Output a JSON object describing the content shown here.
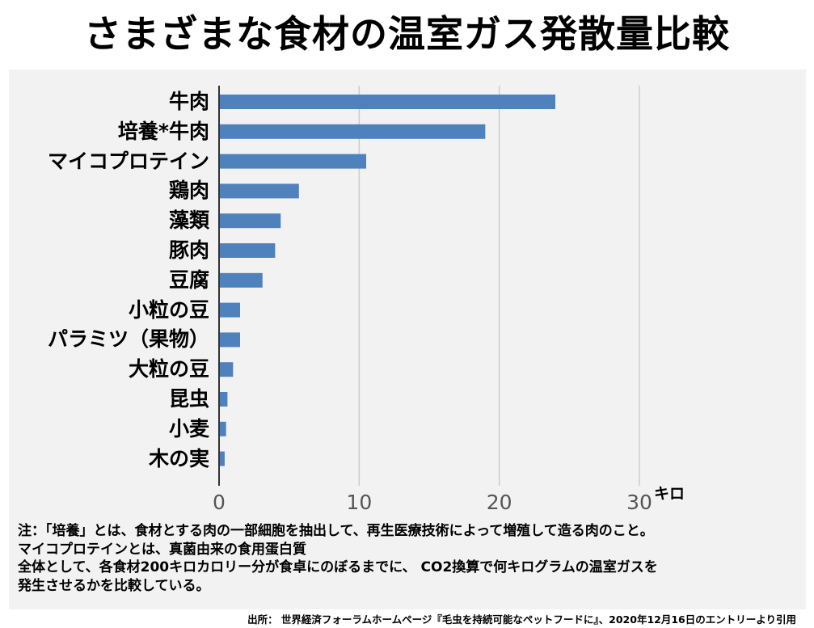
{
  "title": "さまざまな食材の温室ガス発散量比較",
  "chart_data": {
    "type": "bar",
    "orientation": "horizontal",
    "title": "さまざまな食材の温室ガス発散量比較",
    "categories": [
      "牛肉",
      "培養*牛肉",
      "マイコプロテイン",
      "鶏肉",
      "藻類",
      "豚肉",
      "豆腐",
      "小粒の豆",
      "パラミツ（果物）",
      "大粒の豆",
      "昆虫",
      "小麦",
      "木の実"
    ],
    "values": [
      24,
      19,
      10.5,
      5.7,
      4.4,
      4.0,
      3.1,
      1.5,
      1.5,
      1.0,
      0.6,
      0.5,
      0.4
    ],
    "xticks": [
      0,
      10,
      20,
      30
    ],
    "xlim": [
      0,
      30
    ],
    "xunit": "キロ",
    "grid": true,
    "bar_color": "#4f81bd",
    "grid_color": "#cccccc"
  },
  "notes": [
    "注：「培養」とは、食材とする肉の一部細胞を抽出して、再生医療技術によって増殖して造る肉のこと。",
    "マイコプロテインとは、真菌由来の食用蛋白質",
    "全体として、各食材200キロカロリー分が食卓にのぼるまでに、 CO2換算で何キログラムの温室ガスを",
    "発生させるかを比較している。"
  ],
  "source": "出所： 世界経済フォーラムホームページ『毛虫を持続可能なペットフードに』、2020年12月16日のエントリーより引用"
}
